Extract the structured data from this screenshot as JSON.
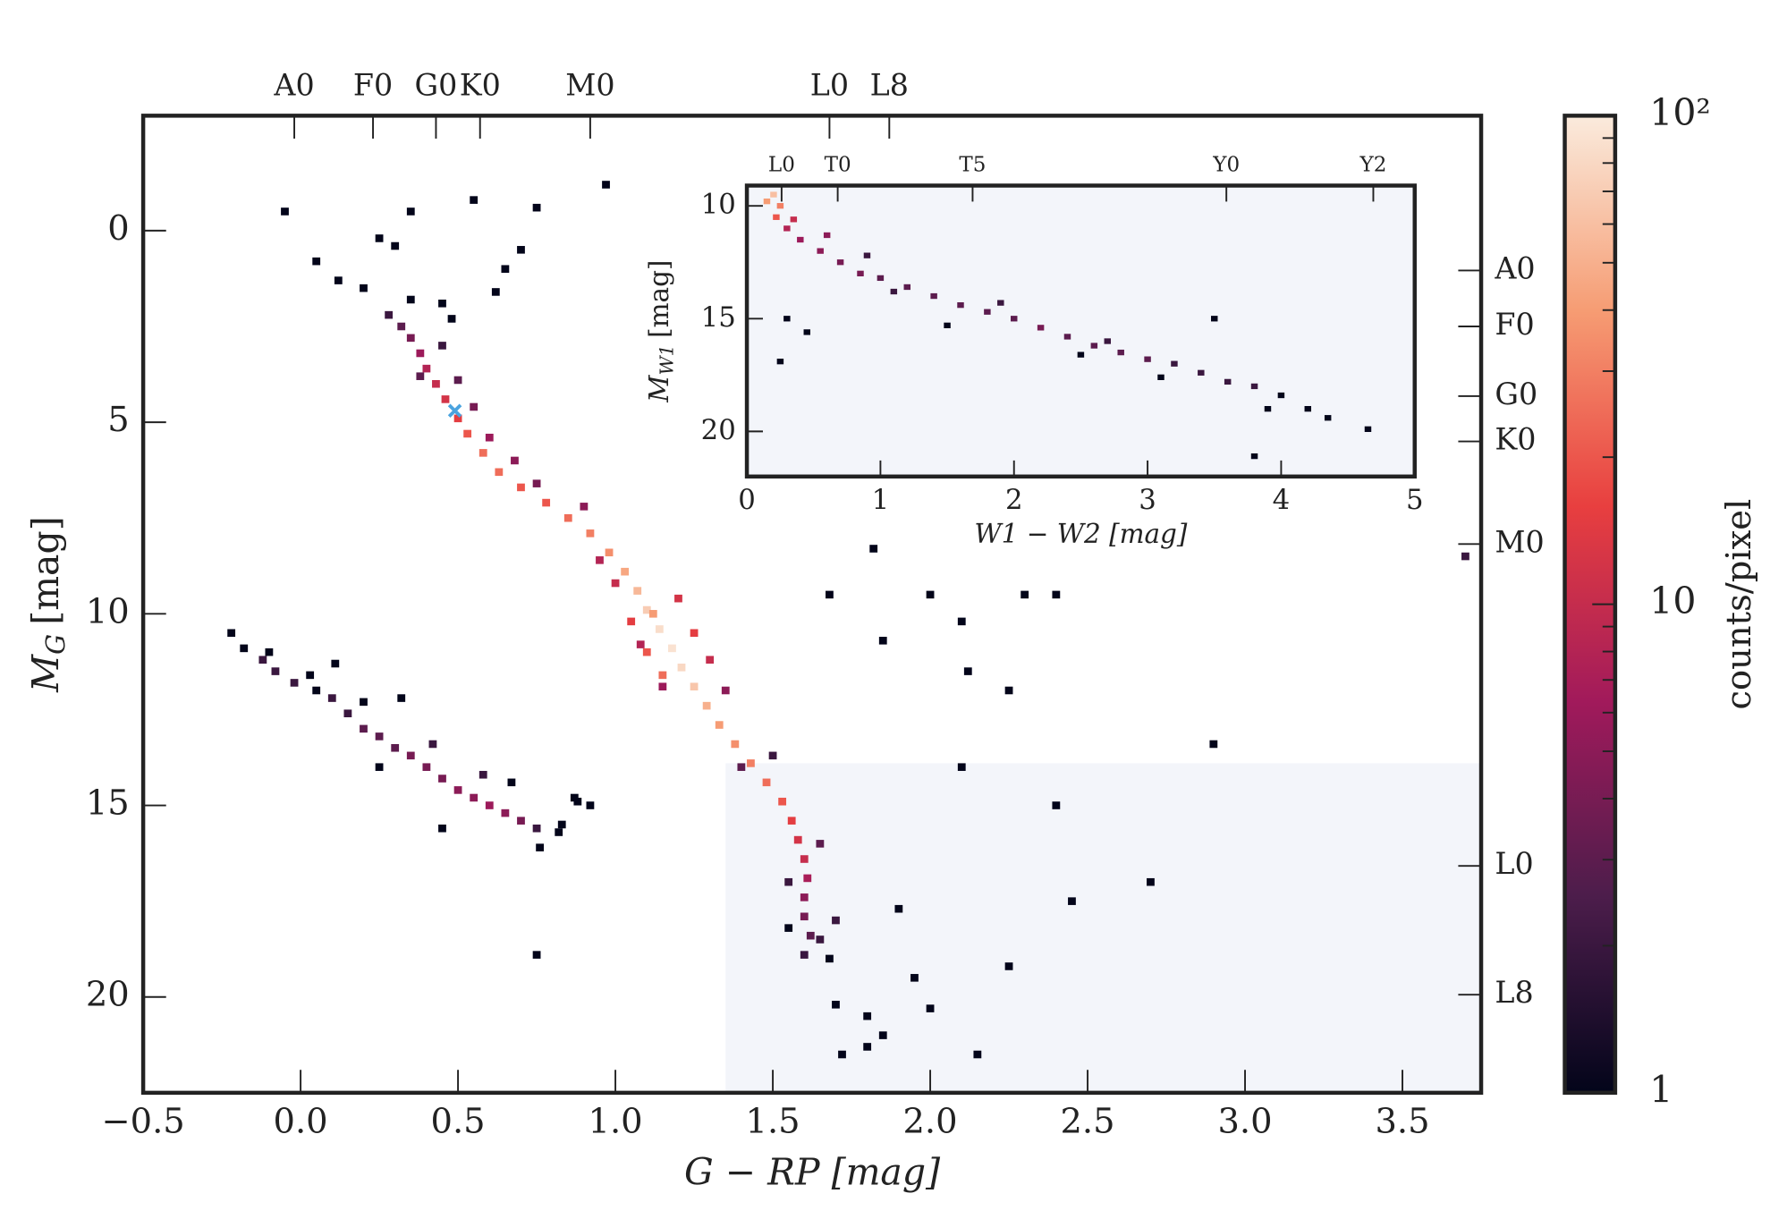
{
  "chart_data": [
    {
      "type": "hist2d",
      "xlabel": "G − RP [mag]",
      "ylabel": {
        "symbol": "M",
        "subscript": "G",
        "unit": "[mag]"
      },
      "xlim": [
        -0.5,
        3.75
      ],
      "ylim": [
        22.5,
        -3
      ],
      "xticks": [
        {
          "value": -0.5,
          "label": "−0.5"
        },
        {
          "value": 0,
          "label": "0.0"
        },
        0.5,
        {
          "value": 1,
          "label": "1.0"
        },
        1.5,
        {
          "value": 2,
          "label": "2.0"
        },
        2.5,
        {
          "value": 3,
          "label": "3.0"
        },
        3.5
      ],
      "yticks": [
        0,
        5,
        10,
        15,
        20
      ],
      "top_ticks": [
        {
          "value": -0.02,
          "label": "A0"
        },
        {
          "value": 0.23,
          "label": "F0"
        },
        {
          "value": 0.43,
          "label": "G0"
        },
        {
          "value": 0.57,
          "label": "K0"
        },
        {
          "value": 0.92,
          "label": "M0"
        },
        {
          "value": 1.68,
          "label": "L0"
        },
        {
          "value": 1.87,
          "label": "L8"
        }
      ],
      "right_ticks": [
        {
          "value": 1.04,
          "label": "A0"
        },
        {
          "value": 2.5,
          "label": "F0"
        },
        {
          "value": 4.32,
          "label": "G0"
        },
        {
          "value": 5.5,
          "label": "K0"
        },
        {
          "value": 8.18,
          "label": "M0"
        },
        {
          "value": 16.58,
          "label": "L0"
        },
        {
          "value": 19.94,
          "label": "L8"
        }
      ],
      "bin_size": [
        0.025,
        0.2
      ],
      "x": [
        0.05,
        0.12,
        0.2,
        0.28,
        0.32,
        0.35,
        0.38,
        0.4,
        0.43,
        0.46,
        0.5,
        0.53,
        0.58,
        0.63,
        0.7,
        0.78,
        0.85,
        0.92,
        0.98,
        1.03,
        1.07,
        1.1,
        1.14,
        1.18,
        1.21,
        1.25,
        1.29,
        1.33,
        1.38,
        1.43,
        1.48,
        1.53,
        1.56,
        1.58,
        1.6,
        1.61,
        1.6,
        1.6,
        1.62,
        1.6,
        1.0,
        1.05,
        1.1,
        1.15,
        1.12,
        0.95,
        1.2,
        1.25,
        1.3,
        1.08,
        1.15,
        1.35,
        0.9,
        0.75,
        0.45,
        0.5,
        0.55,
        0.6,
        0.38,
        0.68,
        1.4,
        1.5,
        1.65,
        1.55,
        1.65,
        1.7,
        1.55,
        1.68,
        1.7,
        1.8,
        1.72,
        1.8,
        1.85,
        0.48,
        0.35,
        0.45,
        0.62,
        0.65,
        0.7,
        0.55,
        0.3,
        0.25,
        0.35,
        0.75,
        0.97,
        -0.05,
        -0.22,
        -0.18,
        -0.12,
        -0.08,
        -0.02,
        0.05,
        0.1,
        0.15,
        0.2,
        0.25,
        0.3,
        0.35,
        0.4,
        0.45,
        0.5,
        0.55,
        0.6,
        0.65,
        0.7,
        0.75,
        0.82,
        0.88,
        0.58,
        0.42,
        0.2,
        0.11,
        0.32,
        0.45,
        0.76,
        0.25,
        2.1,
        1.82,
        1.68,
        2.25,
        2.9,
        2.1,
        2.4,
        2.7,
        2.45,
        2.25,
        2.0,
        2.15,
        1.95,
        1.9,
        0.75,
        0.92,
        3.7,
        2.0,
        2.3,
        2.4,
        2.12,
        1.85,
        0.03,
        -0.1,
        0.83,
        0.87,
        0.67
      ],
      "y": [
        0.8,
        1.3,
        1.5,
        2.2,
        2.5,
        2.8,
        3.2,
        3.6,
        4.0,
        4.4,
        4.9,
        5.3,
        5.8,
        6.3,
        6.7,
        7.1,
        7.5,
        7.9,
        8.4,
        8.9,
        9.4,
        9.9,
        10.4,
        10.9,
        11.4,
        11.9,
        12.4,
        12.9,
        13.4,
        13.9,
        14.4,
        14.9,
        15.4,
        15.9,
        16.4,
        16.9,
        17.4,
        17.9,
        18.4,
        18.9,
        9.2,
        10.2,
        11.0,
        11.6,
        10.0,
        8.6,
        9.6,
        10.5,
        11.2,
        10.8,
        11.9,
        12.0,
        7.2,
        6.6,
        3.0,
        3.9,
        4.6,
        5.4,
        3.8,
        6.0,
        14.0,
        13.7,
        16.0,
        17.0,
        18.5,
        18.0,
        18.2,
        19.0,
        20.2,
        20.5,
        21.5,
        21.3,
        21.0,
        2.3,
        1.8,
        1.9,
        1.6,
        1.0,
        0.5,
        -0.8,
        0.4,
        0.2,
        -0.5,
        -0.6,
        -1.2,
        -0.5,
        10.5,
        10.9,
        11.2,
        11.5,
        11.8,
        12.0,
        12.2,
        12.6,
        13.0,
        13.2,
        13.5,
        13.7,
        14.0,
        14.3,
        14.6,
        14.8,
        15.0,
        15.2,
        15.4,
        15.6,
        15.7,
        14.9,
        14.2,
        13.4,
        12.3,
        11.3,
        12.2,
        15.6,
        16.1,
        14.0,
        10.2,
        8.3,
        9.5,
        12.0,
        13.4,
        14.0,
        15.0,
        17.0,
        17.5,
        19.2,
        20.3,
        21.5,
        19.5,
        17.7,
        18.9,
        15.0,
        8.5,
        9.5,
        9.5,
        9.5,
        11.5,
        10.7,
        11.6,
        11.0,
        15.5,
        14.8,
        14.4
      ],
      "values": [
        1,
        1,
        1,
        2,
        3,
        4,
        6,
        8,
        10,
        12,
        15,
        20,
        25,
        25,
        20,
        20,
        25,
        30,
        35,
        45,
        55,
        70,
        85,
        90,
        80,
        65,
        50,
        40,
        35,
        30,
        25,
        20,
        15,
        12,
        10,
        7,
        5,
        4,
        3,
        2,
        10,
        15,
        20,
        25,
        40,
        8,
        12,
        15,
        10,
        8,
        6,
        5,
        5,
        4,
        2,
        3,
        4,
        6,
        3,
        5,
        3,
        2,
        3,
        2,
        2,
        2,
        1,
        1,
        1,
        1,
        1,
        1,
        1,
        1,
        1,
        1,
        1,
        1,
        1,
        1,
        1,
        1,
        1,
        1,
        1,
        1,
        1,
        1,
        2,
        2,
        2,
        1,
        2,
        2,
        3,
        3,
        3,
        4,
        4,
        4,
        5,
        5,
        6,
        5,
        4,
        2,
        1,
        1,
        2,
        2,
        1,
        1,
        1,
        1,
        1,
        1,
        1,
        1,
        1,
        1,
        1,
        1,
        1,
        1,
        1,
        1,
        1,
        1,
        1,
        1,
        1,
        1,
        2,
        1,
        1,
        1,
        1,
        1,
        1,
        1,
        1,
        1,
        1
      ],
      "colormap": [
        "#03051a",
        "#4c1d4b",
        "#a11a5b",
        "#e83f3f",
        "#f69c73",
        "#faebdd"
      ],
      "color_scale": "log",
      "colorbar": {
        "label": "counts/pixel",
        "lim": [
          1,
          100
        ],
        "ticks": [
          1,
          10,
          {
            "value": 100,
            "label": "10²"
          }
        ],
        "minor_ticks": [
          2,
          3,
          4,
          5,
          6,
          7,
          8,
          9,
          20,
          30,
          40,
          50,
          60,
          70,
          80,
          90
        ]
      },
      "shaded_region": {
        "x": [
          1.35,
          3.75
        ],
        "y": [
          13.9,
          22.5
        ],
        "color": "#f3f5fa"
      },
      "marker": {
        "x": 0.49,
        "y": 4.7,
        "color": "#4aa3df"
      }
    },
    {
      "type": "hist2d",
      "xlabel": "W1 − W2 [mag]",
      "ylabel": {
        "symbol": "M",
        "subscript": "W1",
        "unit": "[mag]"
      },
      "xlim": [
        0,
        5
      ],
      "ylim": [
        22,
        9.1
      ],
      "xticks": [
        0,
        1,
        2,
        3,
        4,
        5
      ],
      "yticks": [
        10,
        15,
        20
      ],
      "top_ticks": [
        {
          "value": 0.26,
          "label": "L0"
        },
        {
          "value": 0.68,
          "label": "T0"
        },
        {
          "value": 1.69,
          "label": "T5"
        },
        {
          "value": 3.59,
          "label": "Y0"
        },
        {
          "value": 4.69,
          "label": "Y2"
        }
      ],
      "bin_size": [
        0.05,
        0.25
      ],
      "x": [
        0.2,
        0.25,
        0.22,
        0.3,
        0.4,
        0.55,
        0.7,
        0.85,
        1.0,
        1.2,
        1.4,
        1.6,
        1.8,
        2.0,
        2.2,
        2.4,
        2.6,
        2.8,
        3.0,
        3.2,
        3.4,
        3.6,
        3.8,
        4.0,
        4.2,
        4.35,
        4.65,
        3.8,
        0.3,
        0.45,
        0.25,
        0.15,
        0.35,
        0.6,
        1.5,
        2.5,
        3.5,
        3.1,
        3.9,
        1.9,
        2.7,
        0.9,
        1.1
      ],
      "y": [
        9.5,
        10.0,
        10.5,
        11.0,
        11.5,
        12.0,
        12.5,
        13.0,
        13.2,
        13.6,
        14.0,
        14.4,
        14.7,
        15.0,
        15.4,
        15.8,
        16.2,
        16.5,
        16.8,
        17.0,
        17.4,
        17.8,
        18.0,
        18.4,
        19.0,
        19.4,
        19.9,
        21.1,
        15.0,
        15.6,
        16.9,
        9.8,
        10.6,
        11.3,
        15.3,
        16.6,
        15.0,
        17.6,
        19.0,
        14.3,
        16.0,
        12.2,
        13.8
      ],
      "values": [
        60,
        30,
        20,
        8,
        6,
        5,
        4,
        4,
        3,
        3,
        3,
        3,
        3,
        3,
        4,
        3,
        3,
        3,
        3,
        2,
        2,
        2,
        2,
        1,
        1,
        1,
        1,
        1,
        1,
        1,
        1,
        40,
        10,
        5,
        1,
        1,
        1,
        1,
        1,
        2,
        2,
        2,
        2
      ],
      "background": "#f3f5fa"
    }
  ]
}
